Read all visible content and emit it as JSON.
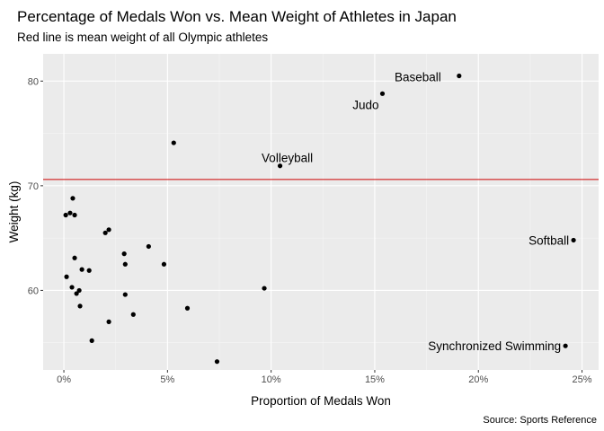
{
  "chart_data": {
    "type": "scatter",
    "title": "Percentage of Medals Won vs. Mean Weight of Athletes in Japan",
    "subtitle": "Red line is mean weight of all Olympic athletes",
    "xlabel": "Proportion of Medals Won",
    "ylabel": "Weight (kg)",
    "caption": "Source: Sports Reference",
    "xlim": [
      -0.01,
      0.258
    ],
    "ylim": [
      52.4,
      82.6
    ],
    "x_ticks": [
      0,
      0.05,
      0.1,
      0.15,
      0.2,
      0.25
    ],
    "x_tick_labels": [
      "0%",
      "5%",
      "10%",
      "15%",
      "20%",
      "25%"
    ],
    "y_ticks": [
      60,
      70,
      80
    ],
    "y_tick_labels": [
      "60",
      "70",
      "80"
    ],
    "reference_line": {
      "y": 70.6,
      "color": "#cc0000"
    },
    "colors": {
      "panel": "#ebebeb",
      "grid_major": "#ffffff",
      "grid_minor": "#f5f5f5",
      "point": "#000000"
    },
    "points": [
      {
        "x": 0.1907,
        "y": 80.5,
        "label": "Baseball"
      },
      {
        "x": 0.1537,
        "y": 78.8,
        "label": "Judo"
      },
      {
        "x": 0.1043,
        "y": 71.9,
        "label": "Volleyball"
      },
      {
        "x": 0.2459,
        "y": 64.8,
        "label": "Softball"
      },
      {
        "x": 0.242,
        "y": 54.7,
        "label": "Synchronized Swimming"
      },
      {
        "x": 0.053,
        "y": 74.1
      },
      {
        "x": 0.0043,
        "y": 68.8
      },
      {
        "x": 0.0009,
        "y": 67.2
      },
      {
        "x": 0.003,
        "y": 67.4
      },
      {
        "x": 0.0052,
        "y": 67.2
      },
      {
        "x": 0.02,
        "y": 65.5
      },
      {
        "x": 0.0217,
        "y": 65.8
      },
      {
        "x": 0.0409,
        "y": 64.2
      },
      {
        "x": 0.0291,
        "y": 63.5
      },
      {
        "x": 0.0052,
        "y": 63.1
      },
      {
        "x": 0.0296,
        "y": 62.5
      },
      {
        "x": 0.0483,
        "y": 62.5
      },
      {
        "x": 0.0087,
        "y": 62.0
      },
      {
        "x": 0.0122,
        "y": 61.9
      },
      {
        "x": 0.0013,
        "y": 61.3
      },
      {
        "x": 0.0039,
        "y": 60.3
      },
      {
        "x": 0.0074,
        "y": 60.0
      },
      {
        "x": 0.0061,
        "y": 59.7
      },
      {
        "x": 0.0296,
        "y": 59.6
      },
      {
        "x": 0.0967,
        "y": 60.2
      },
      {
        "x": 0.0078,
        "y": 58.5
      },
      {
        "x": 0.0596,
        "y": 58.3
      },
      {
        "x": 0.0335,
        "y": 57.7
      },
      {
        "x": 0.0217,
        "y": 57.0
      },
      {
        "x": 0.0135,
        "y": 55.2
      },
      {
        "x": 0.0739,
        "y": 53.2
      }
    ]
  }
}
